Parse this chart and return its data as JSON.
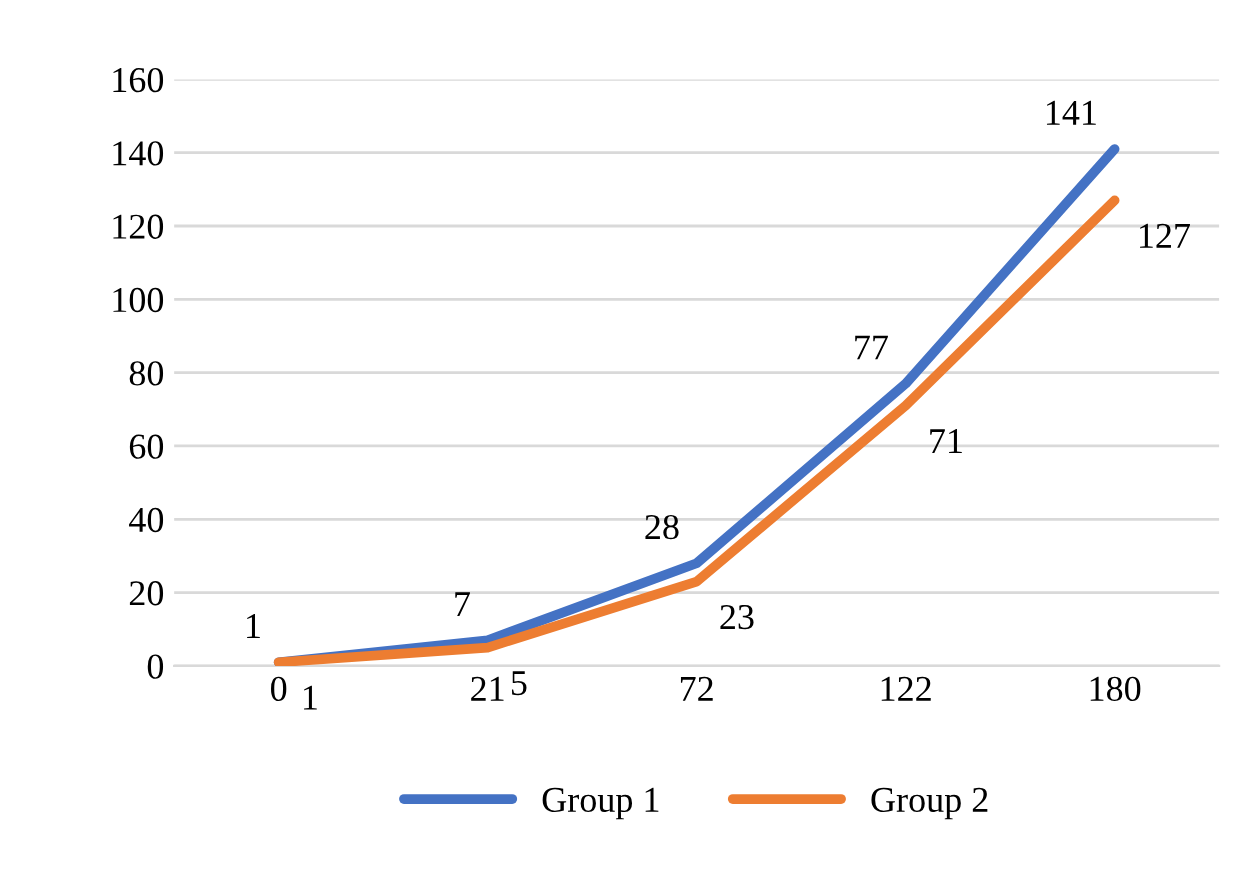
{
  "chart_data": {
    "type": "line",
    "categories": [
      "0",
      "21",
      "72",
      "122",
      "180"
    ],
    "series": [
      {
        "name": "Group 1",
        "color": "#4472c4",
        "values": [
          1,
          7,
          28,
          77,
          141
        ]
      },
      {
        "name": "Group 2",
        "color": "#ed7d31",
        "values": [
          1,
          5,
          23,
          71,
          127
        ]
      }
    ],
    "ylim": [
      0,
      160
    ],
    "yticks": [
      0,
      20,
      40,
      60,
      80,
      100,
      120,
      140,
      160
    ],
    "grid": "y",
    "legend": "bottom",
    "data_labels": true,
    "marker": "none",
    "line_style": "solid"
  }
}
